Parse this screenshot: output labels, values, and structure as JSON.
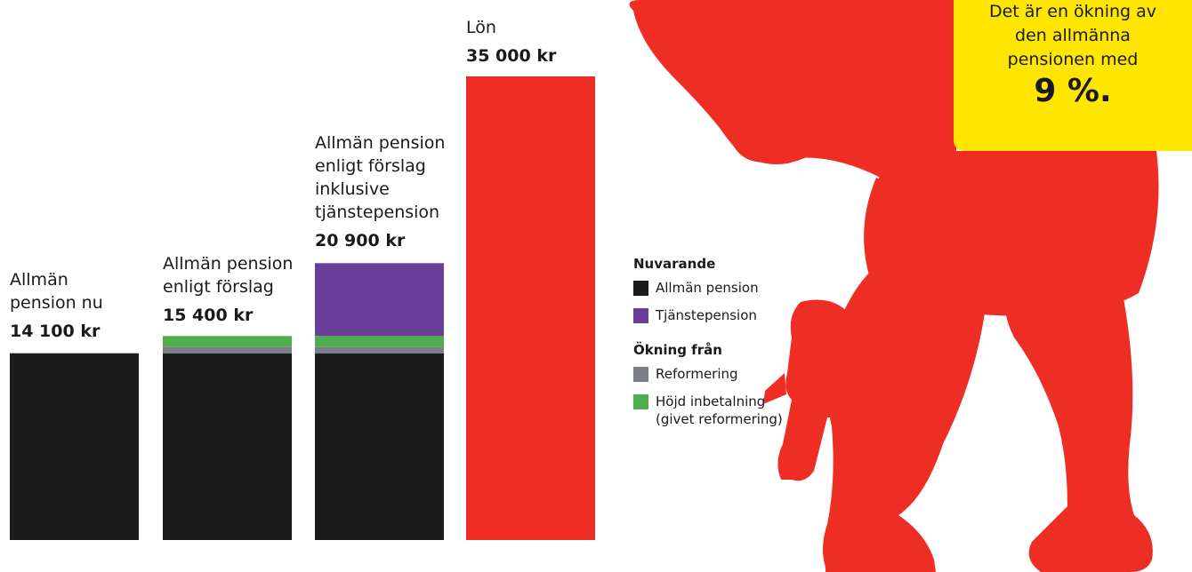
{
  "chart_data": {
    "type": "bar",
    "stacked": true,
    "currency": "kr",
    "categories": [
      "Allmän pension nu",
      "Allmän pension enligt förslag",
      "Allmän pension enligt förslag inklusive tjänstepension",
      "Lön"
    ],
    "category_totals": [
      "14 100 kr",
      "15 400 kr",
      "20 900 kr",
      "35 000 kr"
    ],
    "series": [
      {
        "name": "Allmän pension",
        "color": "#1c1c1c",
        "values": [
          14100,
          14100,
          14100,
          0
        ]
      },
      {
        "name": "Reformering",
        "color": "#7b7f85",
        "values": [
          0,
          500,
          500,
          0
        ]
      },
      {
        "name": "Höjd inbetalning (givet reformering)",
        "color": "#4caf4c",
        "values": [
          0,
          800,
          800,
          0
        ]
      },
      {
        "name": "Tjänstepension",
        "color": "#6a3f9a",
        "values": [
          0,
          0,
          5500,
          0
        ]
      },
      {
        "name": "Lön",
        "color": "#ee2e24",
        "values": [
          0,
          0,
          0,
          35000
        ]
      }
    ],
    "ylim": [
      0,
      35000
    ]
  },
  "labels": [
    {
      "name": "Allmän\npension nu",
      "value": "14 100 kr"
    },
    {
      "name": "Allmän pension\nenligt förslag",
      "value": "15 400 kr"
    },
    {
      "name": "Allmän pension\nenligt förslag\ninklusive\ntjänstepension",
      "value": "20 900 kr"
    },
    {
      "name": "Lön",
      "value": "35 000 kr"
    }
  ],
  "legend": {
    "current_heading": "Nuvarande",
    "current_items": [
      {
        "label": "Allmän pension",
        "color": "#1c1c1c"
      },
      {
        "label": "Tjänstepension",
        "color": "#6a3f9a"
      }
    ],
    "increase_heading": "Ökning från",
    "increase_items": [
      {
        "label": "Reformering",
        "color": "#7b7f85"
      },
      {
        "label": "Höjd inbetalning\n(givet reformering)",
        "color": "#4caf4c"
      }
    ]
  },
  "callout": {
    "text": "Det är en ökning av\nden allmänna\npensionen med",
    "value": "9 %.",
    "color": "#ffe600"
  },
  "figure": {
    "icon": "worker-with-drill-silhouette",
    "color": "#ee2e24"
  }
}
